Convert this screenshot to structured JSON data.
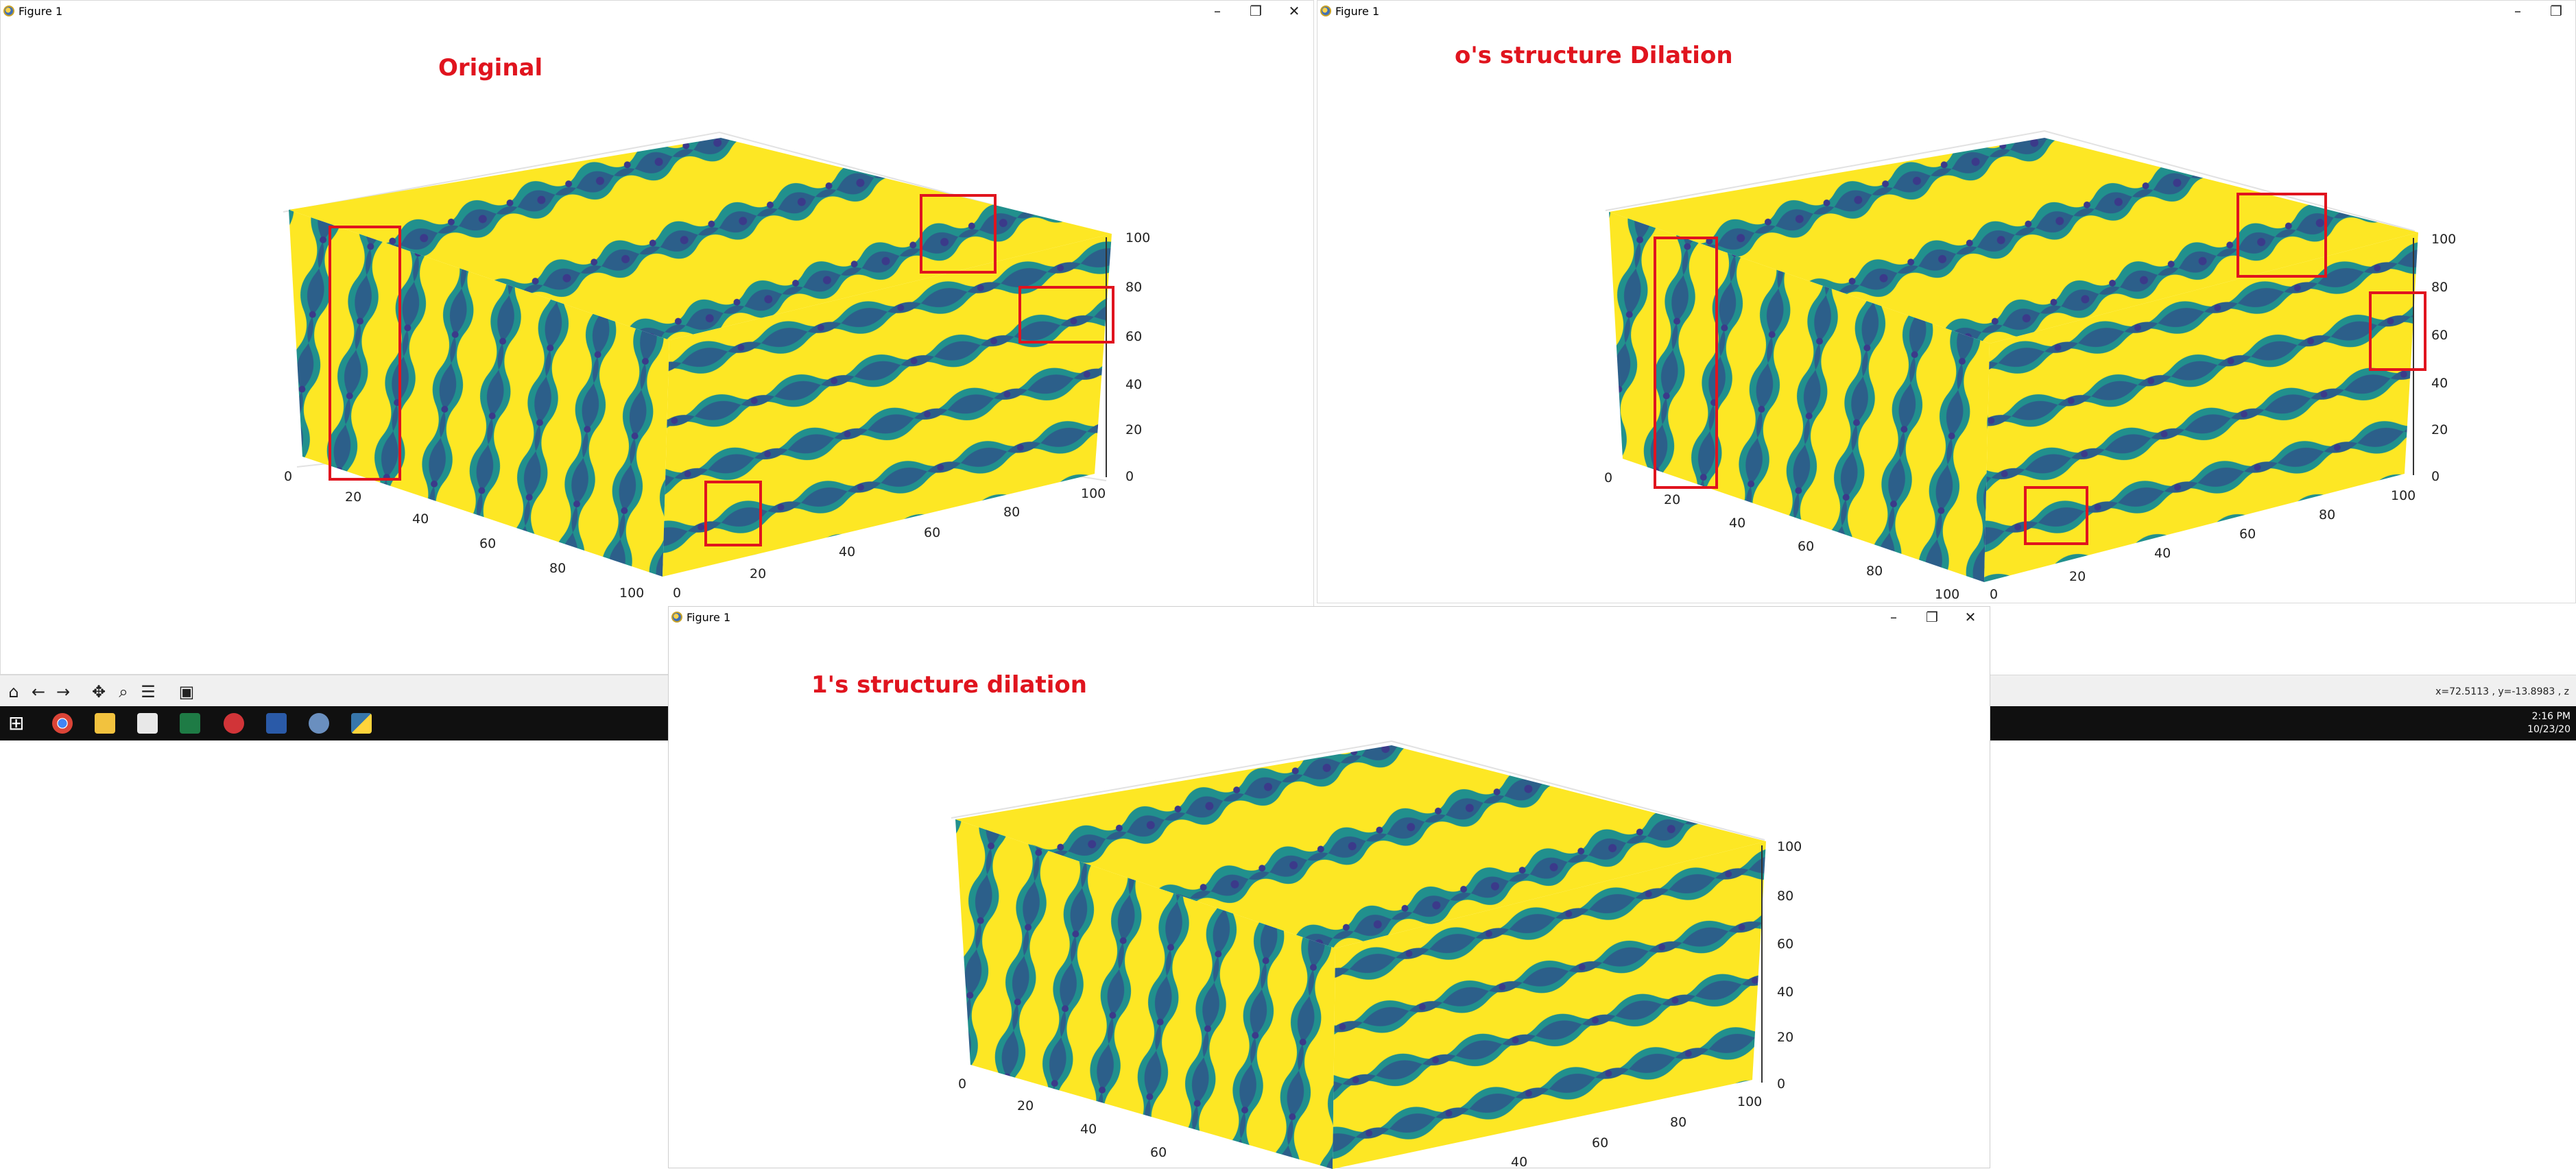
{
  "windows": {
    "top_left": {
      "title": "Figure 1",
      "plot_title": "Original"
    },
    "top_right": {
      "title": "Figure 1",
      "plot_title": "o's structure Dilation"
    },
    "bottom": {
      "title": "Figure 1",
      "plot_title": "1's structure dilation"
    }
  },
  "window_controls": {
    "minimize": "–",
    "maximize": "❐",
    "close": "✕"
  },
  "toolbar": {
    "buttons": [
      "home-icon",
      "back-arrow-icon",
      "forward-arrow-icon",
      "pan-icon",
      "zoom-icon",
      "configure-subplots-icon",
      "save-icon"
    ],
    "glyphs": {
      "home": "⌂",
      "back": "←",
      "forward": "→",
      "pan": "✥",
      "zoom": "⌕",
      "config": "☰",
      "save": "▣"
    },
    "coords": "x=72.5113     , y=-13.8983     , z"
  },
  "taskbar": {
    "start_glyph": "⊞",
    "clock_time": "2:16 PM",
    "clock_date": "10/23/20",
    "apps": [
      "chrome-icon",
      "file-explorer-icon",
      "mail-icon",
      "excel-icon",
      "settings-app-icon",
      "powershell-icon",
      "python-idle-icon",
      "python-icon"
    ]
  },
  "colors": {
    "yellow": "#fde724",
    "teal": "#26828e",
    "dark_teal": "#1f5f7a",
    "purple": "#3b3a8a",
    "highlight_box": "#e0141e"
  },
  "axes": {
    "z_ticks": [
      "0",
      "20",
      "40",
      "60",
      "80",
      "100"
    ],
    "x_ticks": [
      "0",
      "20",
      "40",
      "60",
      "80",
      "100"
    ],
    "y_ticks": [
      "0",
      "20",
      "40",
      "60",
      "80",
      "100"
    ]
  }
}
